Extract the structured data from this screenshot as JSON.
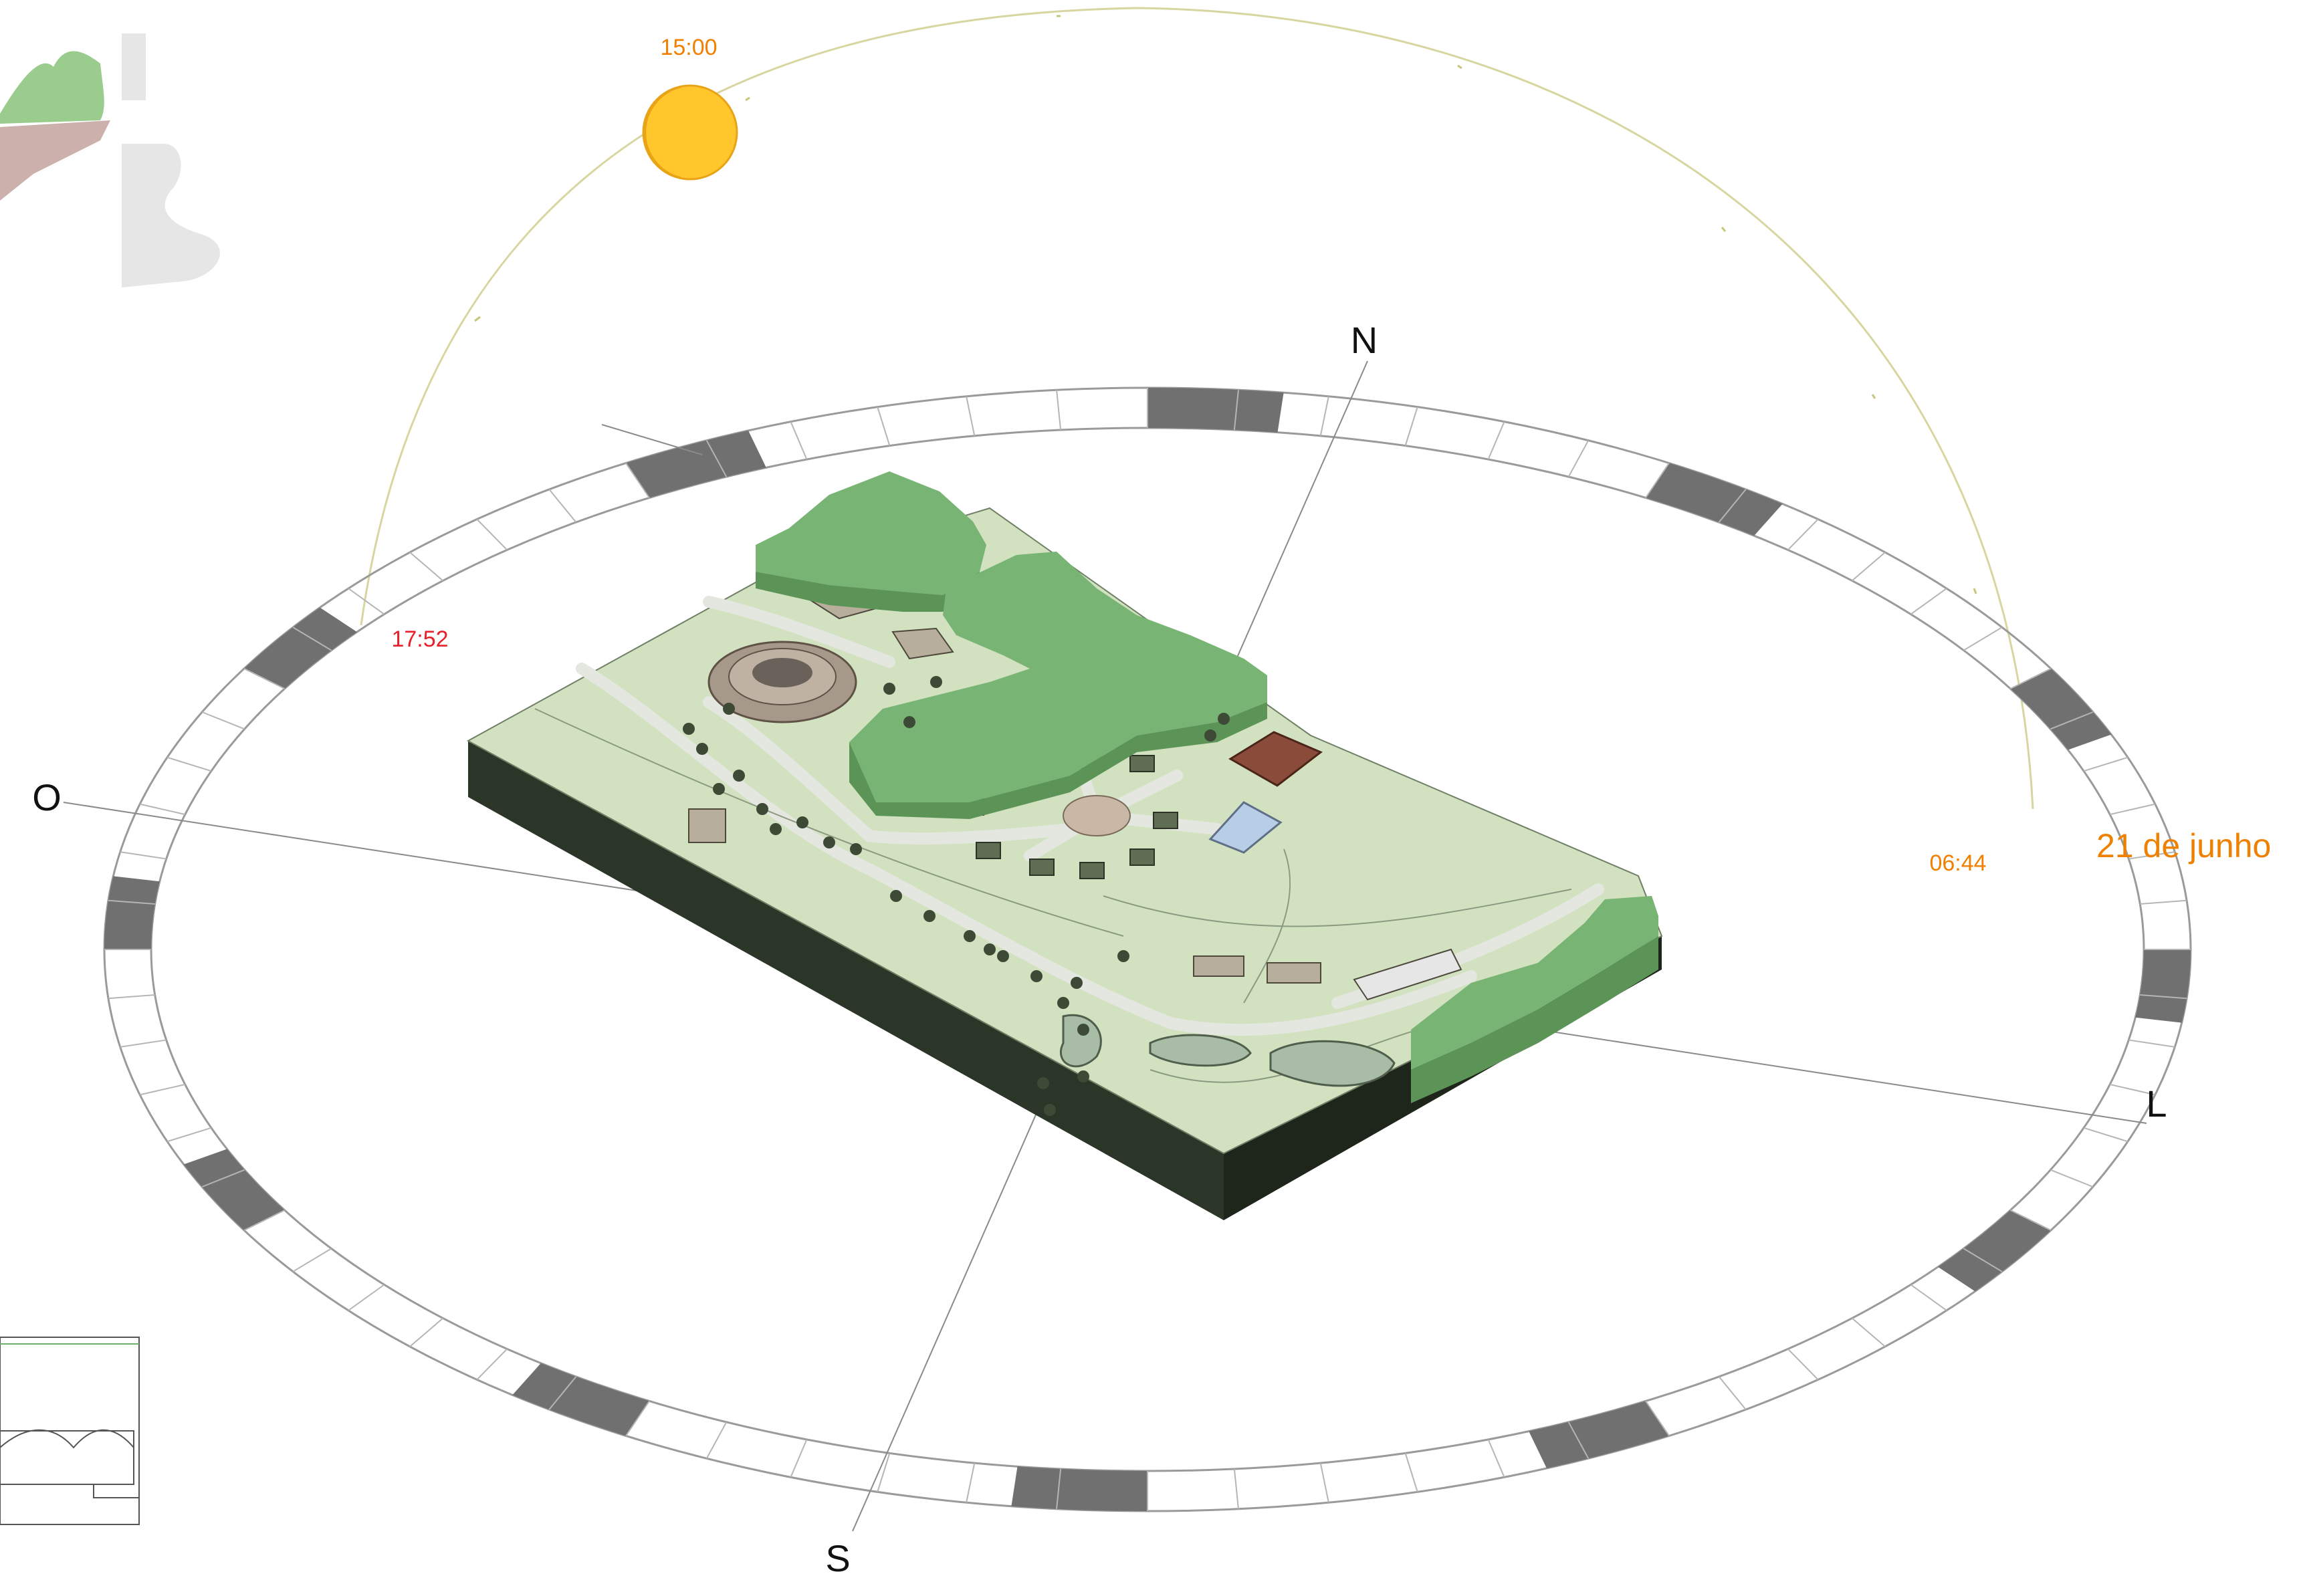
{
  "compass": {
    "north": "N",
    "south": "S",
    "east": "L",
    "west": "O"
  },
  "sun_path": {
    "date_label": "21 de junho",
    "sunrise_time": "06:44",
    "sun_time": "15:00",
    "sunset_time": "17:52"
  },
  "colors": {
    "sun_fill": "#FFC72C",
    "sun_stroke": "#E8A317",
    "orange_text": "#F08000",
    "red_text": "#E8202A",
    "ring_dark": "#707070",
    "vegetation": "#78B473",
    "terrain": "#D2E2C0",
    "base": "#2A3326"
  }
}
